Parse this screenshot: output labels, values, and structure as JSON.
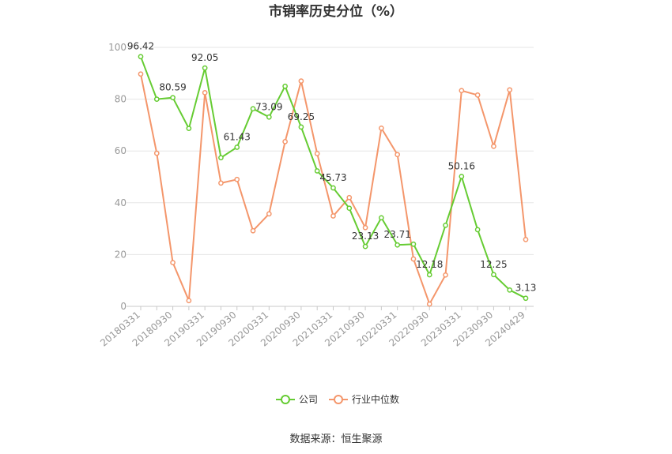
{
  "chart_data": {
    "type": "line",
    "title": "市销率历史分位（%）",
    "source": "数据来源：恒生聚源",
    "ylim": [
      0,
      100
    ],
    "y_ticks": [
      0,
      20,
      40,
      60,
      80,
      100
    ],
    "x": [
      "20180331",
      "20180630",
      "20180930",
      "20181231",
      "20190331",
      "20190630",
      "20190930",
      "20191231",
      "20200331",
      "20200630",
      "20200930",
      "20201231",
      "20210331",
      "20210630",
      "20210930",
      "20211231",
      "20220331",
      "20220630",
      "20220930",
      "20221231",
      "20230331",
      "20230630",
      "20230930",
      "20231231",
      "20240429"
    ],
    "x_tick_labels": [
      "20180331",
      "20180930",
      "20190331",
      "20190930",
      "20200331",
      "20200930",
      "20210331",
      "20210930",
      "20220331",
      "20220930",
      "20230331",
      "20230930",
      "20240429"
    ],
    "grid": true,
    "legend_position": "bottom",
    "series": [
      {
        "name": "公司",
        "color": "#66cc33",
        "values": [
          96.42,
          80.0,
          80.59,
          68.7,
          92.05,
          57.4,
          61.43,
          76.3,
          73.09,
          85.0,
          69.25,
          52.3,
          45.73,
          37.9,
          23.13,
          34.2,
          23.71,
          24.0,
          12.18,
          31.3,
          50.16,
          29.6,
          12.25,
          6.3,
          3.13
        ],
        "labels": [
          "96.42",
          null,
          "80.59",
          null,
          "92.05",
          null,
          "61.43",
          null,
          "73.09",
          null,
          "69.25",
          null,
          "45.73",
          null,
          "23.13",
          null,
          "23.71",
          null,
          "12.18",
          null,
          "50.16",
          null,
          "12.25",
          null,
          "3.13"
        ]
      },
      {
        "name": "行业中位数",
        "color": "#f4966b",
        "values": [
          89.7,
          59.1,
          16.9,
          2.2,
          82.5,
          47.6,
          49.0,
          29.2,
          35.7,
          63.6,
          87.0,
          59.0,
          34.9,
          42.0,
          30.4,
          68.8,
          58.6,
          18.3,
          0.9,
          12.1,
          83.3,
          81.6,
          61.8,
          83.6,
          25.8
        ]
      }
    ]
  }
}
